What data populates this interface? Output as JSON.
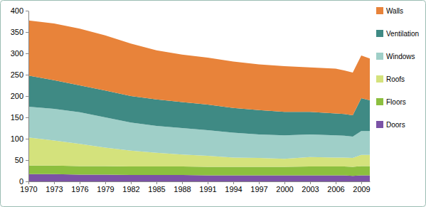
{
  "chart_data": {
    "type": "area",
    "stacked": true,
    "grid": false,
    "legend": "right",
    "x": [
      1970,
      1973,
      1976,
      1979,
      1982,
      1985,
      1988,
      1991,
      1994,
      1997,
      2000,
      2003,
      2006,
      2007,
      2008,
      2009,
      2010
    ],
    "xlim": [
      1970,
      2010
    ],
    "xticks": [
      1970,
      1973,
      1976,
      1979,
      1982,
      1985,
      1988,
      1991,
      1994,
      1997,
      2000,
      2003,
      2006,
      2009
    ],
    "ylim": [
      0,
      400
    ],
    "yticks": [
      0,
      50,
      100,
      150,
      200,
      250,
      300,
      350,
      400
    ],
    "series": [
      {
        "name": "Doors",
        "color": "#7b52a6",
        "values": [
          17,
          17,
          16,
          16,
          15,
          15,
          15,
          14,
          14,
          14,
          14,
          14,
          14,
          14,
          13,
          14,
          14
        ]
      },
      {
        "name": "Floors",
        "color": "#8cbf3f",
        "values": [
          20,
          20,
          20,
          20,
          20,
          20,
          20,
          20,
          20,
          20,
          20,
          21,
          21,
          21,
          21,
          22,
          22
        ]
      },
      {
        "name": "Roofs",
        "color": "#d4e27c",
        "values": [
          66,
          59,
          52,
          43,
          37,
          32,
          28,
          26,
          22,
          21,
          19,
          22,
          21,
          21,
          21,
          26,
          26
        ]
      },
      {
        "name": "Windows",
        "color": "#9fcfc8",
        "values": [
          72,
          74,
          74,
          71,
          66,
          63,
          62,
          60,
          58,
          55,
          55,
          53,
          52,
          51,
          50,
          56,
          56
        ]
      },
      {
        "name": "Ventilation",
        "color": "#3f8a84",
        "values": [
          73,
          67,
          63,
          63,
          62,
          62,
          61,
          60,
          58,
          57,
          55,
          53,
          51,
          51,
          50,
          77,
          72
        ]
      },
      {
        "name": "Walls",
        "color": "#e8833a",
        "values": [
          129,
          133,
          133,
          129,
          123,
          115,
          111,
          110,
          109,
          107,
          107,
          104,
          105,
          102,
          100,
          100,
          98
        ]
      }
    ]
  }
}
